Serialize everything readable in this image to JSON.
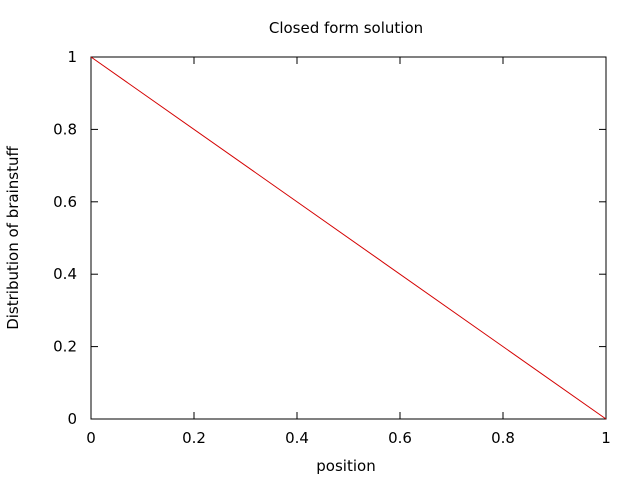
{
  "chart_data": {
    "type": "line",
    "title": "Closed form solution",
    "xlabel": "position",
    "ylabel": "Distribution of brainstuff",
    "xlim": [
      0,
      1
    ],
    "ylim": [
      0,
      1
    ],
    "x_ticks": [
      "0",
      "0.2",
      "0.4",
      "0.6",
      "0.8",
      "1"
    ],
    "y_ticks": [
      "0",
      "0.2",
      "0.4",
      "0.6",
      "0.8",
      "1"
    ],
    "grid": false,
    "legend": "none",
    "series": [
      {
        "color": "#d40000",
        "x": [
          0,
          1
        ],
        "y": [
          1,
          0
        ]
      }
    ]
  }
}
